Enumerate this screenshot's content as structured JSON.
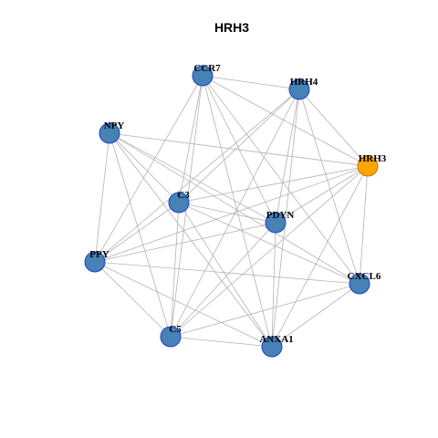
{
  "title": "HRH3",
  "nodes": [
    {
      "label": "CCR7"
    },
    {
      "label": "HRH4"
    },
    {
      "label": "NPY"
    },
    {
      "label": "HRH3"
    },
    {
      "label": "C3"
    },
    {
      "label": "PDYN"
    },
    {
      "label": "PPY"
    },
    {
      "label": "CXCL6"
    },
    {
      "label": "C5"
    },
    {
      "label": "ANXA1"
    }
  ]
}
